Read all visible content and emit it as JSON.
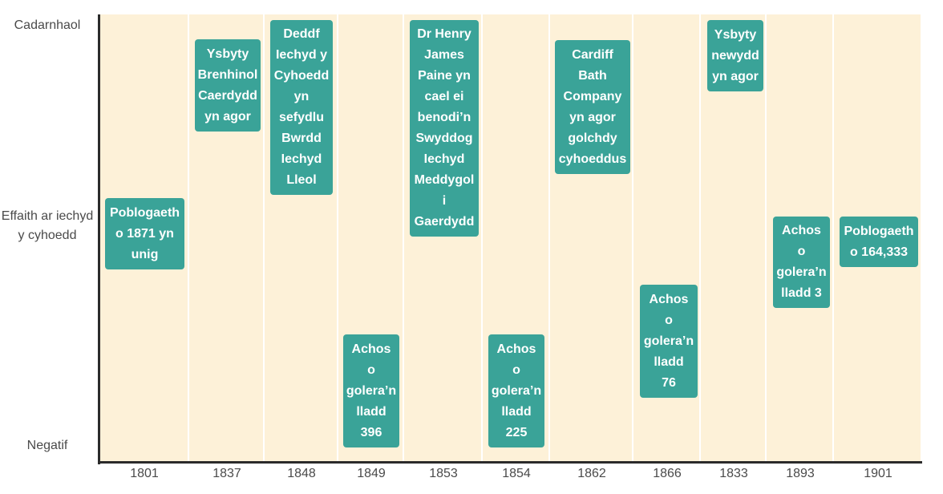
{
  "chart_data": {
    "type": "timeline",
    "y_levels": [
      "Cadarnhaol",
      "Effaith ar iechyd y cyhoedd",
      "Negatif"
    ],
    "events": [
      {
        "year": "1801",
        "label": "Poblogaeth o 1871 yn unig"
      },
      {
        "year": "1837",
        "label": "Ysbyty Brenhinol Caerdydd yn agor"
      },
      {
        "year": "1848",
        "label": "Deddf Iechyd y Cyhoedd yn sefydlu Bwrdd Iechyd Lleol"
      },
      {
        "year": "1849",
        "label": "Achos o golera’n lladd 396"
      },
      {
        "year": "1853",
        "label": "Dr Henry James Paine yn cael ei benodi’n Swyddog Iechyd Meddygol i Gaerdydd"
      },
      {
        "year": "1854",
        "label": "Achos o golera’n lladd 225"
      },
      {
        "year": "1862",
        "label": "Cardiff Bath Company yn agor golchdy cyhoeddus"
      },
      {
        "year": "1866",
        "label": "Achos o golera’n lladd 76"
      },
      {
        "year": "1833",
        "label": "Ysbyty newydd yn agor"
      },
      {
        "year": "1893",
        "label": "Achos o golera’n lladd 3"
      },
      {
        "year": "1901",
        "label": "Poblogaeth o 164,333"
      }
    ]
  },
  "colors": {
    "background_band": "#fdf1d8",
    "card": "#3aa398",
    "axis": "#2b2b2b"
  }
}
